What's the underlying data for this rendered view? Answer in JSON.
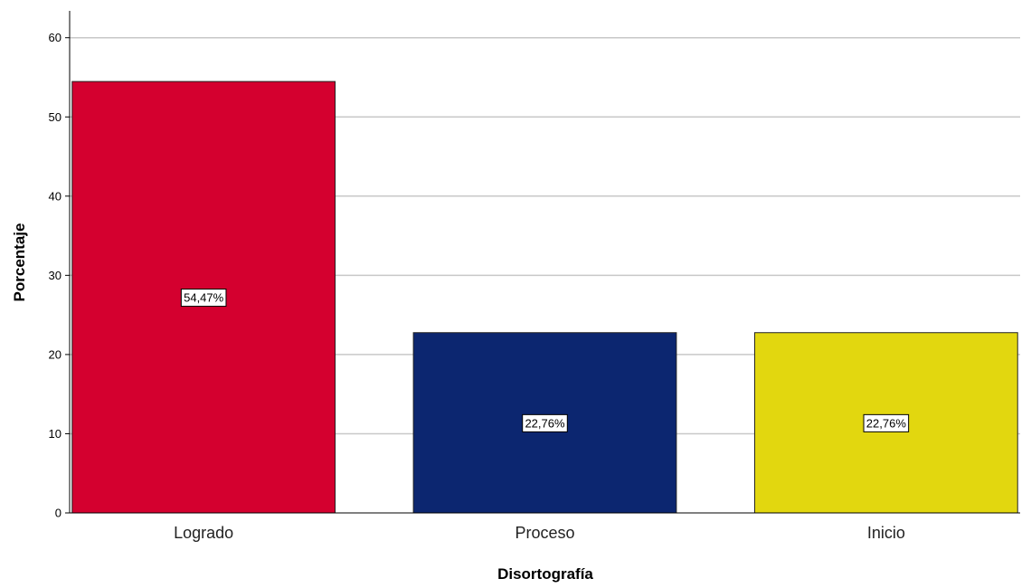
{
  "chart_data": {
    "type": "bar",
    "categories": [
      "Logrado",
      "Proceso",
      "Inicio"
    ],
    "values": [
      54.47,
      22.76,
      22.76
    ],
    "data_labels": [
      "54,47%",
      "22,76%",
      "22,76%"
    ],
    "colors": [
      "#d4002f",
      "#0c2670",
      "#e2d70f"
    ],
    "xlabel": "Disortografía",
    "ylabel": "Porcentaje",
    "ylim": [
      0,
      63
    ],
    "yticks": [
      0,
      10,
      20,
      30,
      40,
      50,
      60
    ],
    "grid": true,
    "legend": "none"
  }
}
